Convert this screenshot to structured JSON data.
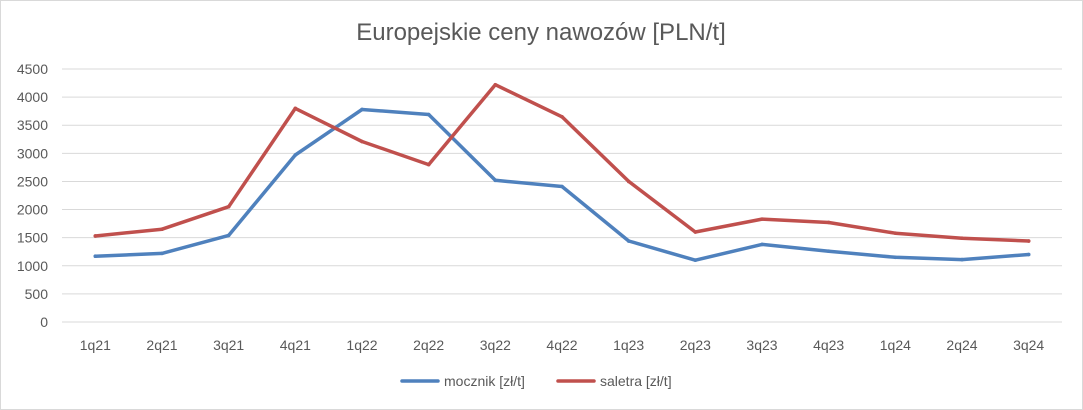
{
  "chart_data": {
    "type": "line",
    "title": "Europejskie ceny nawozów [PLN/t]",
    "xlabel": "",
    "ylabel": "",
    "categories": [
      "1q21",
      "2q21",
      "3q21",
      "4q21",
      "1q22",
      "2q22",
      "3q22",
      "4q22",
      "1q23",
      "2q23",
      "3q23",
      "4q23",
      "1q24",
      "2q24",
      "3q24"
    ],
    "ylim": [
      0,
      4500
    ],
    "yticks": [
      0,
      500,
      1000,
      1500,
      2000,
      2500,
      3000,
      3500,
      4000,
      4500
    ],
    "grid": true,
    "legend_position": "bottom",
    "series": [
      {
        "name": "mocznik [zł/t]",
        "color": "#4f81bd",
        "values": [
          1170,
          1220,
          1540,
          2970,
          3780,
          3690,
          2520,
          2410,
          1440,
          1100,
          1380,
          1260,
          1150,
          1110,
          1200
        ]
      },
      {
        "name": "saletra [zł/t]",
        "color": "#c0504d",
        "values": [
          1530,
          1650,
          2050,
          3800,
          3210,
          2800,
          4220,
          3650,
          2500,
          1600,
          1830,
          1770,
          1580,
          1490,
          1440
        ]
      }
    ]
  }
}
